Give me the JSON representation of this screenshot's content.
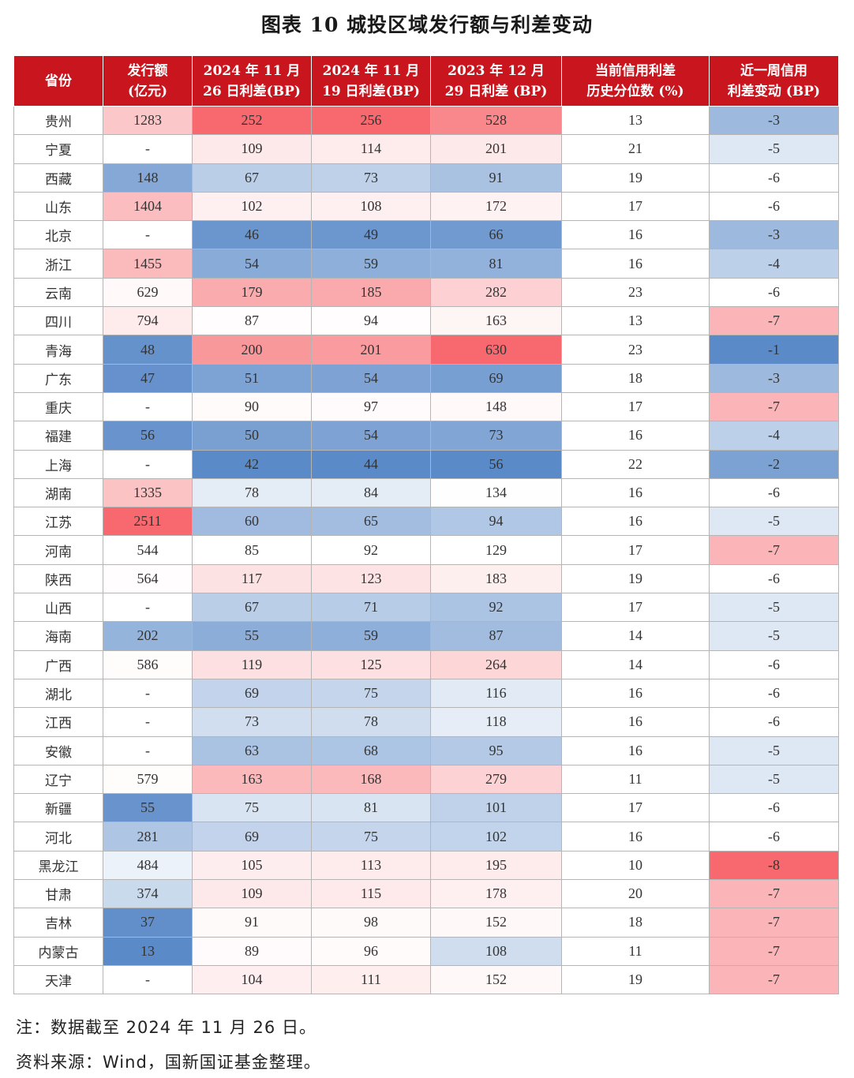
{
  "title": "图表 10  城投区域发行额与利差变动",
  "chart_data": {
    "type": "table",
    "title": "图表 10  城投区域发行额与利差变动",
    "columns": [
      {
        "key": "province",
        "label": [
          "省份"
        ]
      },
      {
        "key": "issuance",
        "label": [
          "发行额",
          "(亿元)"
        ]
      },
      {
        "key": "spread_20241126",
        "label": [
          "2024 年 11 月",
          "26 日利差(BP)"
        ]
      },
      {
        "key": "spread_20241119",
        "label": [
          "2024 年 11 月",
          "19 日利差(BP)"
        ]
      },
      {
        "key": "spread_20231229",
        "label": [
          "2023 年 12 月",
          "29 日利差 (BP)"
        ]
      },
      {
        "key": "percentile",
        "label": [
          "当前信用利差",
          "历史分位数 (%)"
        ]
      },
      {
        "key": "weekly_change",
        "label": [
          "近一周信用",
          "利差变动 (BP)"
        ]
      }
    ],
    "rows": [
      {
        "province": "贵州",
        "issuance": "1283",
        "spread_20241126": 252,
        "spread_20241119": 256,
        "spread_20231229": 528,
        "percentile": 13,
        "weekly_change": -3
      },
      {
        "province": "宁夏",
        "issuance": "-",
        "spread_20241126": 109,
        "spread_20241119": 114,
        "spread_20231229": 201,
        "percentile": 21,
        "weekly_change": -5
      },
      {
        "province": "西藏",
        "issuance": "148",
        "spread_20241126": 67,
        "spread_20241119": 73,
        "spread_20231229": 91,
        "percentile": 19,
        "weekly_change": -6
      },
      {
        "province": "山东",
        "issuance": "1404",
        "spread_20241126": 102,
        "spread_20241119": 108,
        "spread_20231229": 172,
        "percentile": 17,
        "weekly_change": -6
      },
      {
        "province": "北京",
        "issuance": "-",
        "spread_20241126": 46,
        "spread_20241119": 49,
        "spread_20231229": 66,
        "percentile": 16,
        "weekly_change": -3
      },
      {
        "province": "浙江",
        "issuance": "1455",
        "spread_20241126": 54,
        "spread_20241119": 59,
        "spread_20231229": 81,
        "percentile": 16,
        "weekly_change": -4
      },
      {
        "province": "云南",
        "issuance": "629",
        "spread_20241126": 179,
        "spread_20241119": 185,
        "spread_20231229": 282,
        "percentile": 23,
        "weekly_change": -6
      },
      {
        "province": "四川",
        "issuance": "794",
        "spread_20241126": 87,
        "spread_20241119": 94,
        "spread_20231229": 163,
        "percentile": 13,
        "weekly_change": -7
      },
      {
        "province": "青海",
        "issuance": "48",
        "spread_20241126": 200,
        "spread_20241119": 201,
        "spread_20231229": 630,
        "percentile": 23,
        "weekly_change": -1
      },
      {
        "province": "广东",
        "issuance": "47",
        "spread_20241126": 51,
        "spread_20241119": 54,
        "spread_20231229": 69,
        "percentile": 18,
        "weekly_change": -3
      },
      {
        "province": "重庆",
        "issuance": "-",
        "spread_20241126": 90,
        "spread_20241119": 97,
        "spread_20231229": 148,
        "percentile": 17,
        "weekly_change": -7
      },
      {
        "province": "福建",
        "issuance": "56",
        "spread_20241126": 50,
        "spread_20241119": 54,
        "spread_20231229": 73,
        "percentile": 16,
        "weekly_change": -4
      },
      {
        "province": "上海",
        "issuance": "-",
        "spread_20241126": 42,
        "spread_20241119": 44,
        "spread_20231229": 56,
        "percentile": 22,
        "weekly_change": -2
      },
      {
        "province": "湖南",
        "issuance": "1335",
        "spread_20241126": 78,
        "spread_20241119": 84,
        "spread_20231229": 134,
        "percentile": 16,
        "weekly_change": -6
      },
      {
        "province": "江苏",
        "issuance": "2511",
        "spread_20241126": 60,
        "spread_20241119": 65,
        "spread_20231229": 94,
        "percentile": 16,
        "weekly_change": -5
      },
      {
        "province": "河南",
        "issuance": "544",
        "spread_20241126": 85,
        "spread_20241119": 92,
        "spread_20231229": 129,
        "percentile": 17,
        "weekly_change": -7
      },
      {
        "province": "陕西",
        "issuance": "564",
        "spread_20241126": 117,
        "spread_20241119": 123,
        "spread_20231229": 183,
        "percentile": 19,
        "weekly_change": -6
      },
      {
        "province": "山西",
        "issuance": "-",
        "spread_20241126": 67,
        "spread_20241119": 71,
        "spread_20231229": 92,
        "percentile": 17,
        "weekly_change": -5
      },
      {
        "province": "海南",
        "issuance": "202",
        "spread_20241126": 55,
        "spread_20241119": 59,
        "spread_20231229": 87,
        "percentile": 14,
        "weekly_change": -5
      },
      {
        "province": "广西",
        "issuance": "586",
        "spread_20241126": 119,
        "spread_20241119": 125,
        "spread_20231229": 264,
        "percentile": 14,
        "weekly_change": -6
      },
      {
        "province": "湖北",
        "issuance": "-",
        "spread_20241126": 69,
        "spread_20241119": 75,
        "spread_20231229": 116,
        "percentile": 16,
        "weekly_change": -6
      },
      {
        "province": "江西",
        "issuance": "-",
        "spread_20241126": 73,
        "spread_20241119": 78,
        "spread_20231229": 118,
        "percentile": 16,
        "weekly_change": -6
      },
      {
        "province": "安徽",
        "issuance": "-",
        "spread_20241126": 63,
        "spread_20241119": 68,
        "spread_20231229": 95,
        "percentile": 16,
        "weekly_change": -5
      },
      {
        "province": "辽宁",
        "issuance": "579",
        "spread_20241126": 163,
        "spread_20241119": 168,
        "spread_20231229": 279,
        "percentile": 11,
        "weekly_change": -5
      },
      {
        "province": "新疆",
        "issuance": "55",
        "spread_20241126": 75,
        "spread_20241119": 81,
        "spread_20231229": 101,
        "percentile": 17,
        "weekly_change": -6
      },
      {
        "province": "河北",
        "issuance": "281",
        "spread_20241126": 69,
        "spread_20241119": 75,
        "spread_20231229": 102,
        "percentile": 16,
        "weekly_change": -6
      },
      {
        "province": "黑龙江",
        "issuance": "484",
        "spread_20241126": 105,
        "spread_20241119": 113,
        "spread_20231229": 195,
        "percentile": 10,
        "weekly_change": -8
      },
      {
        "province": "甘肃",
        "issuance": "374",
        "spread_20241126": 109,
        "spread_20241119": 115,
        "spread_20231229": 178,
        "percentile": 20,
        "weekly_change": -7
      },
      {
        "province": "吉林",
        "issuance": "37",
        "spread_20241126": 91,
        "spread_20241119": 98,
        "spread_20231229": 152,
        "percentile": 18,
        "weekly_change": -7
      },
      {
        "province": "内蒙古",
        "issuance": "13",
        "spread_20241126": 89,
        "spread_20241119": 96,
        "spread_20231229": 108,
        "percentile": 11,
        "weekly_change": -7
      },
      {
        "province": "天津",
        "issuance": "-",
        "spread_20241126": 104,
        "spread_20241119": 111,
        "spread_20231229": 152,
        "percentile": 19,
        "weekly_change": -7
      }
    ],
    "heatmap_colors": {
      "low": "#5b8ac8",
      "mid": "#ffffff",
      "high": "#f7696e"
    },
    "header_color": "#c9151e"
  },
  "notes": {
    "note": "注：数据截至 2024 年 11 月 26 日。",
    "source": "资料来源：Wind，国新国证基金整理。"
  }
}
